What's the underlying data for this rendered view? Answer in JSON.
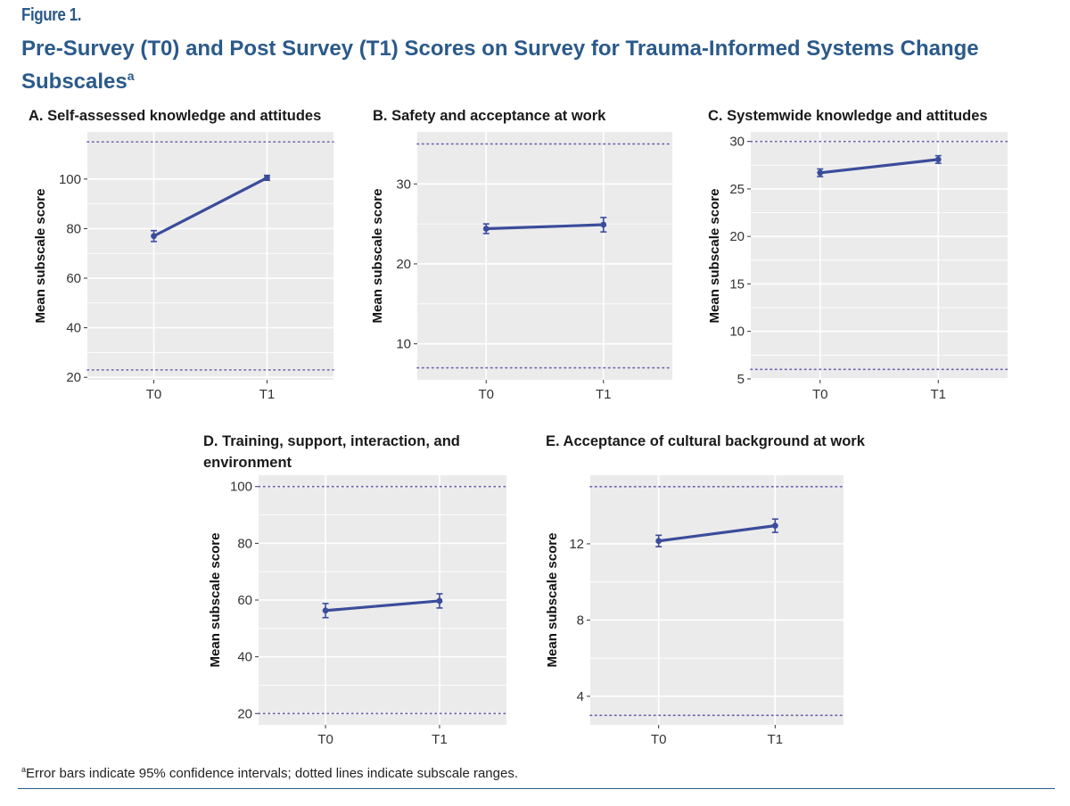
{
  "figure_label": "Figure 1.",
  "title": "Pre-Survey (T0) and Post Survey (T1) Scores on Survey for Trauma-Informed Systems Change Subscales",
  "title_superscript": "a",
  "footnote_marker": "a",
  "footnote": "Error bars indicate 95% confidence intervals; dotted lines indicate subscale ranges.",
  "colors": {
    "title": "#2b5a8a",
    "panel_bg": "#ebebeb",
    "grid": "#ffffff",
    "series": "#3b4c9b",
    "range_line": "#6a64b0"
  },
  "chart_data": [
    {
      "type": "line",
      "title": "A. Self-assessed knowledge and attitudes",
      "ylabel": "Mean subscale score",
      "categories": [
        "T0",
        "T1"
      ],
      "values": [
        77,
        100.5
      ],
      "error_low": [
        74.8,
        99.5
      ],
      "error_high": [
        79.2,
        101.5
      ],
      "range_lines": [
        23,
        115
      ],
      "ylim": [
        19,
        119
      ],
      "yticks": [
        20,
        40,
        60,
        80,
        100
      ]
    },
    {
      "type": "line",
      "title": "B. Safety and acceptance at work",
      "ylabel": "Mean subscale score",
      "categories": [
        "T0",
        "T1"
      ],
      "values": [
        24.4,
        24.9
      ],
      "error_low": [
        23.8,
        24.0
      ],
      "error_high": [
        25.0,
        25.8
      ],
      "range_lines": [
        7,
        35
      ],
      "ylim": [
        5.5,
        36.5
      ],
      "yticks": [
        10,
        20,
        30
      ]
    },
    {
      "type": "line",
      "title": "C. Systemwide knowledge and attitudes",
      "ylabel": "Mean subscale score",
      "categories": [
        "T0",
        "T1"
      ],
      "values": [
        26.7,
        28.1
      ],
      "error_low": [
        26.3,
        27.7
      ],
      "error_high": [
        27.1,
        28.5
      ],
      "range_lines": [
        6,
        30
      ],
      "ylim": [
        4.9,
        31
      ],
      "yticks": [
        5,
        10,
        15,
        20,
        25,
        30
      ]
    },
    {
      "type": "line",
      "title": "D. Training, support, interaction, and environment",
      "ylabel": "Mean subscale score",
      "categories": [
        "T0",
        "T1"
      ],
      "values": [
        56.3,
        59.7
      ],
      "error_low": [
        53.8,
        57.2
      ],
      "error_high": [
        58.8,
        62.2
      ],
      "range_lines": [
        20,
        100
      ],
      "ylim": [
        16,
        104
      ],
      "yticks": [
        20,
        40,
        60,
        80,
        100
      ]
    },
    {
      "type": "line",
      "title": "E. Acceptance of cultural background at work",
      "ylabel": "Mean subscale score",
      "categories": [
        "T0",
        "T1"
      ],
      "values": [
        12.15,
        12.95
      ],
      "error_low": [
        11.85,
        12.6
      ],
      "error_high": [
        12.45,
        13.3
      ],
      "range_lines": [
        3,
        15
      ],
      "ylim": [
        2.5,
        15.6
      ],
      "yticks": [
        4,
        8,
        12
      ]
    }
  ]
}
